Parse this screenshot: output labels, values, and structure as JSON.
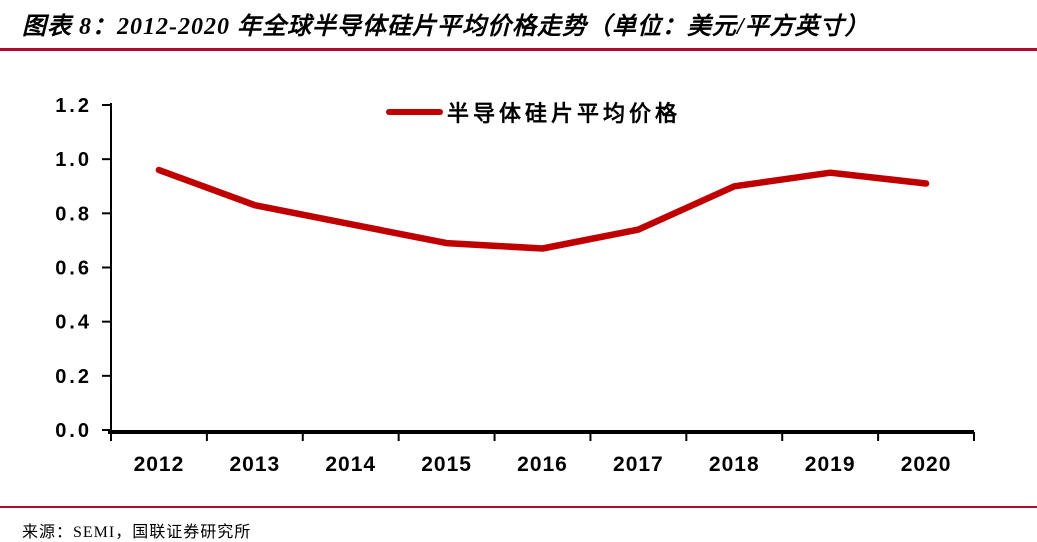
{
  "title": "图表 8：2012-2020 年全球半导体硅片平均价格走势（单位：美元/平方英寸）",
  "source": "来源：SEMI，国联证券研究所",
  "colors": {
    "rule": "#b00a2e",
    "line": "#c00000",
    "axis": "#000000",
    "text": "#000000"
  },
  "chart_data": {
    "type": "line",
    "title": "",
    "legend": [
      "半导体硅片平均价格"
    ],
    "legend_position": "top-center",
    "categories": [
      "2012",
      "2013",
      "2014",
      "2015",
      "2016",
      "2017",
      "2018",
      "2019",
      "2020"
    ],
    "series": [
      {
        "name": "半导体硅片平均价格",
        "color": "#c00000",
        "values": [
          0.96,
          0.83,
          0.76,
          0.69,
          0.67,
          0.74,
          0.9,
          0.95,
          0.91
        ]
      }
    ],
    "xlabel": "",
    "ylabel": "",
    "unit_label": "美元/平方英寸",
    "ylim": [
      0.0,
      1.2
    ],
    "yticks": [
      0.0,
      0.2,
      0.4,
      0.6,
      0.8,
      1.0,
      1.2
    ],
    "ytick_labels": [
      "0.0",
      "0.2",
      "0.4",
      "0.6",
      "0.8",
      "1.0",
      "1.2"
    ],
    "grid": false
  }
}
